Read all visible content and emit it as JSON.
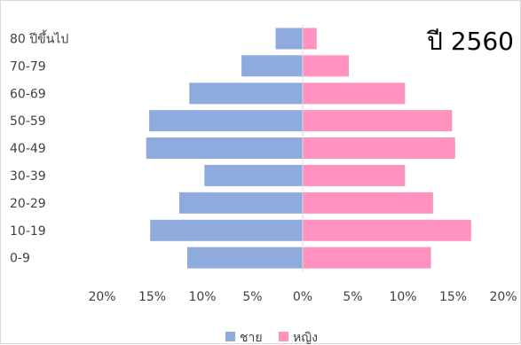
{
  "chart_data": {
    "type": "bar",
    "orientation": "horizontal",
    "title": "ปี 2560",
    "categories": [
      "0-9",
      "10-19",
      "20-29",
      "30-39",
      "40-49",
      "50-59",
      "60-69",
      "70-79",
      "80 ปีขึ้นไป"
    ],
    "series": [
      {
        "name": "ชาย",
        "values": [
          11.5,
          15.2,
          12.3,
          9.8,
          15.6,
          15.3,
          11.3,
          6.1,
          2.7
        ],
        "color": "#8faadc",
        "direction": "left"
      },
      {
        "name": "หญิง",
        "values": [
          12.8,
          16.8,
          13.0,
          10.2,
          15.2,
          14.9,
          10.2,
          4.6,
          1.4
        ],
        "color": "#ff92be",
        "direction": "right"
      }
    ],
    "xlim": [
      -20,
      20
    ],
    "x_ticks": [
      "20%",
      "15%",
      "10%",
      "5%",
      "0%",
      "5%",
      "10%",
      "15%",
      "20%"
    ],
    "legend_position": "bottom",
    "grid": false
  }
}
